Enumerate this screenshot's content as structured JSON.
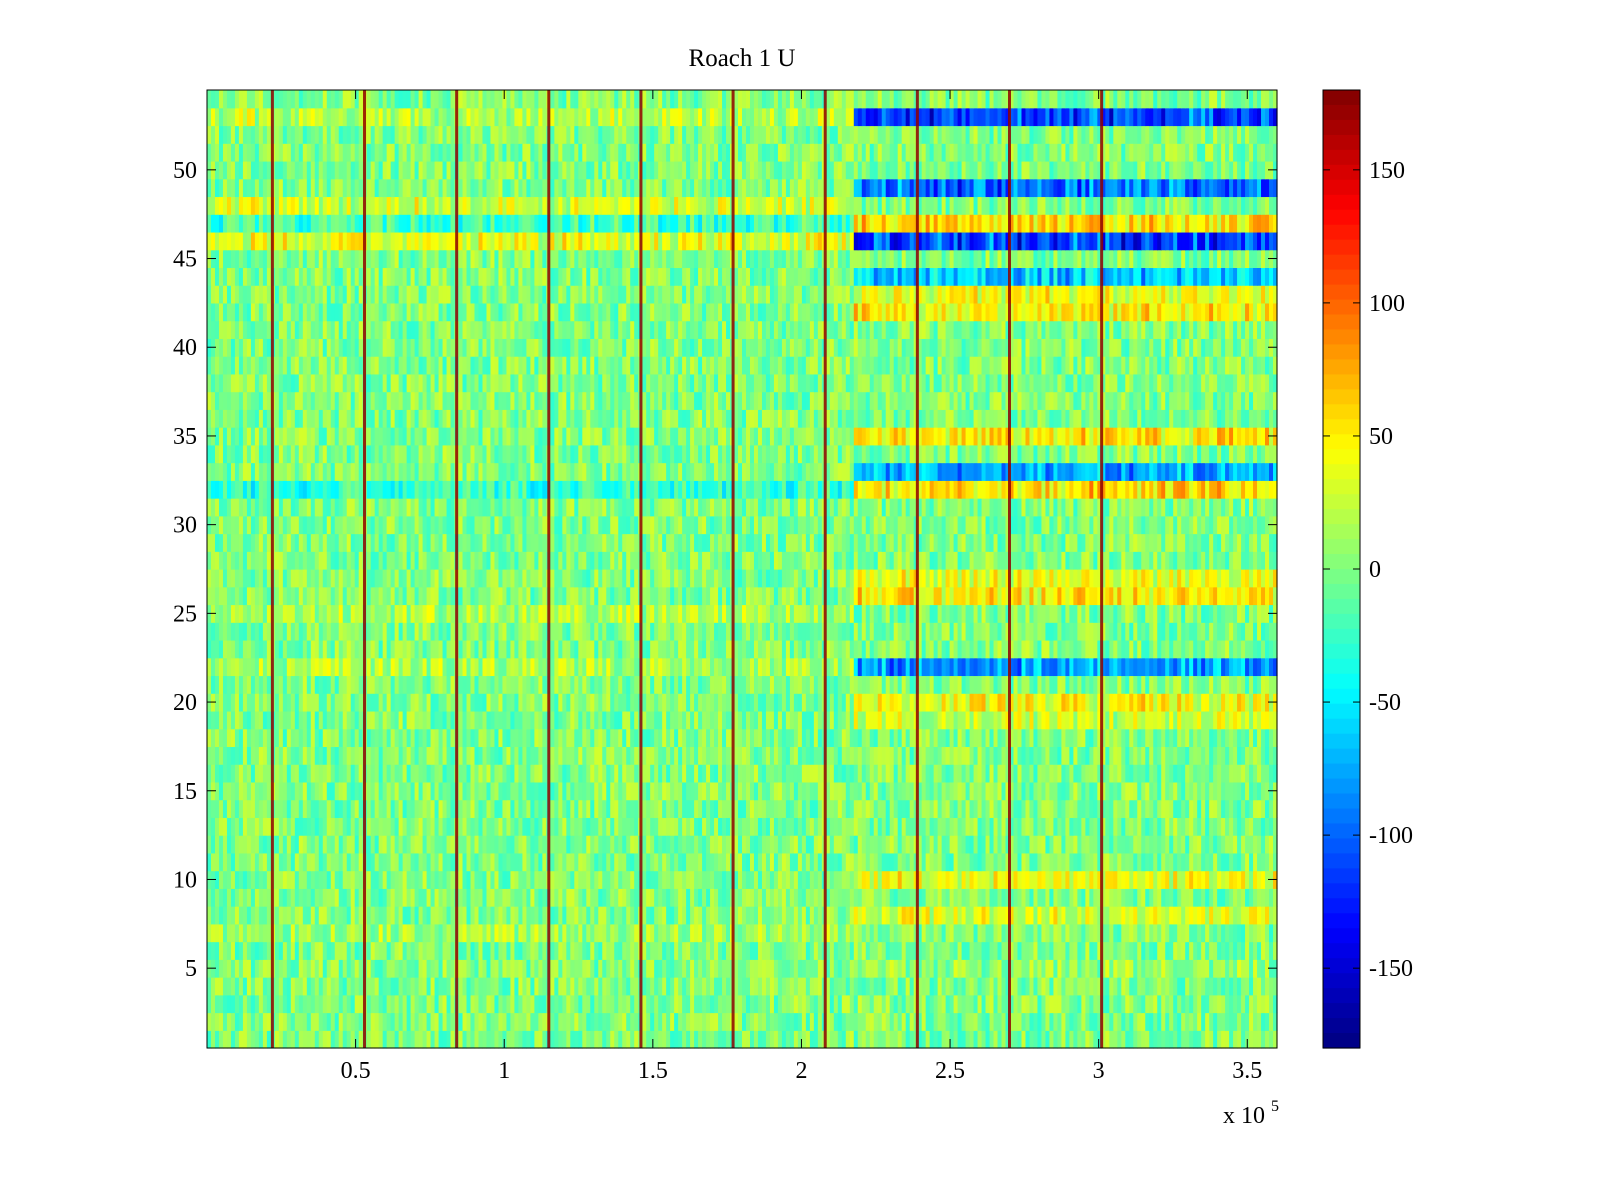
{
  "chart_data": {
    "type": "heatmap",
    "title": "Roach 1 U",
    "xlabel": "",
    "ylabel": "",
    "x_exponent_label": "x 10",
    "x_exponent_power": "5",
    "xlim": [
      0,
      3.6
    ],
    "ylim": [
      0.5,
      54.5
    ],
    "rows": 54,
    "colorscale": "jet",
    "clim": [
      -180,
      180
    ],
    "xticks": [
      0.5,
      1,
      1.5,
      2,
      2.5,
      3,
      3.5
    ],
    "xtick_labels": [
      "0.5",
      "1",
      "1.5",
      "2",
      "2.5",
      "3",
      "3.5"
    ],
    "yticks": [
      5,
      10,
      15,
      20,
      25,
      30,
      35,
      40,
      45,
      50
    ],
    "ytick_labels": [
      "5",
      "10",
      "15",
      "20",
      "25",
      "30",
      "35",
      "40",
      "45",
      "50"
    ],
    "cticks": [
      150,
      100,
      50,
      0,
      -50,
      -100,
      -150
    ],
    "ctick_labels": [
      "150",
      "100",
      "50",
      "0",
      "-50",
      "-100",
      "-150"
    ],
    "spike_x": [
      0.22,
      0.53,
      0.84,
      1.15,
      1.46,
      1.77,
      2.08,
      2.39,
      2.7,
      3.01
    ],
    "spike_value": 175,
    "regime_change_x": 2.17,
    "row_offsets_early": {
      "46": 45,
      "48": 35,
      "53": 25,
      "47": -30,
      "32": -35,
      "22": 20,
      "25": 20,
      "7": 15
    },
    "row_offsets_late": {
      "53": -140,
      "49": -120,
      "46": -140,
      "44": -80,
      "47": 70,
      "43": 50,
      "42": 60,
      "35": 65,
      "33": -90,
      "32": 70,
      "27": 45,
      "26": 60,
      "22": -100,
      "20": 50,
      "19": 30,
      "10": 45,
      "8": 40,
      "5": 10
    },
    "noise_amplitude": 30
  }
}
